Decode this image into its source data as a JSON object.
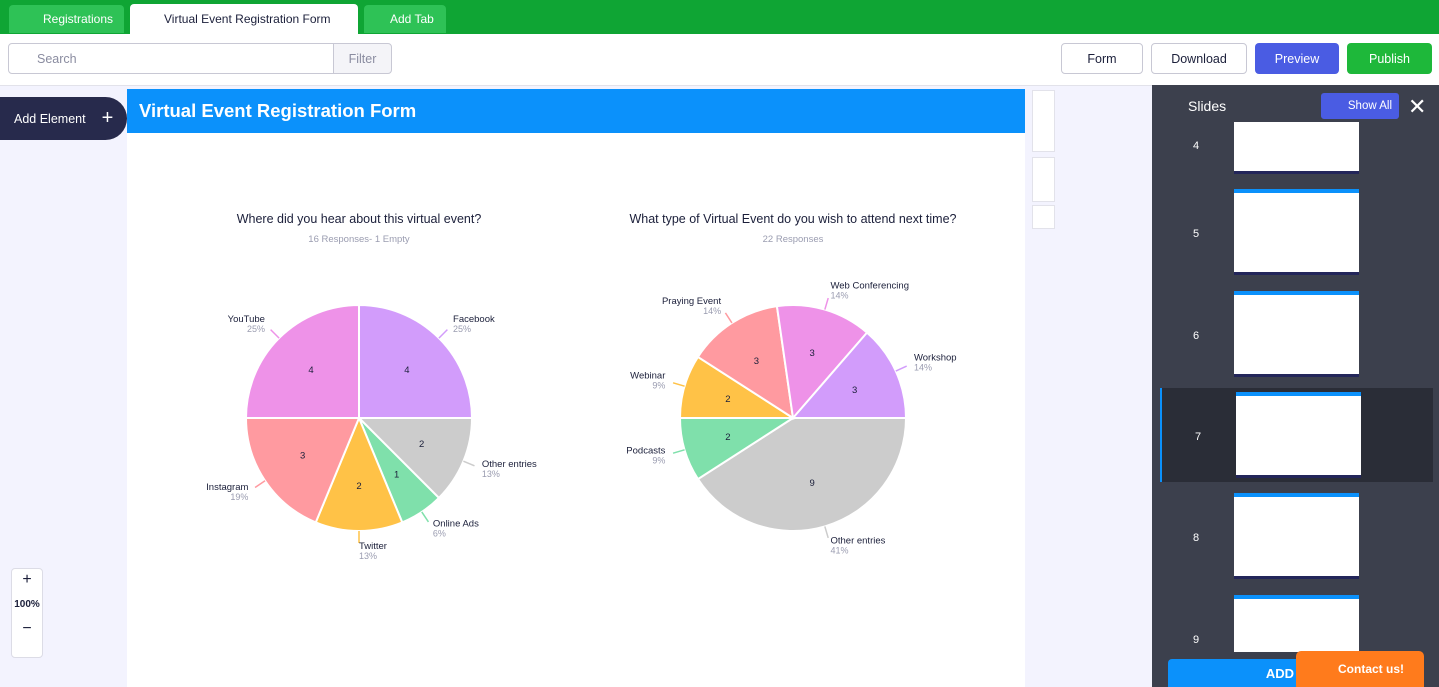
{
  "tabs": [
    "Registrations",
    "Virtual Event Registration Form",
    "Add Tab"
  ],
  "toolbar": {
    "search": "Search",
    "filter": "Filter",
    "form": "Form",
    "download": "Download",
    "preview": "Preview",
    "publish": "Publish"
  },
  "left": {
    "add_element": "Add Element",
    "zoom": "100%"
  },
  "form_title": "Virtual Event Registration Form",
  "slides": {
    "title": "Slides",
    "show_all": "Show All",
    "numbers": [
      4,
      5,
      6,
      7,
      8,
      9
    ]
  },
  "add_button": "ADD",
  "contact": "Contact us!",
  "chart_data": [
    {
      "type": "pie",
      "title": "Where did you hear about this virtual event?",
      "subtitle": "16 Responses- 1 Empty",
      "categories": [
        "Facebook",
        "Other entries",
        "Online Ads",
        "Twitter",
        "Instagram",
        "YouTube"
      ],
      "values": [
        4,
        2,
        1,
        2,
        3,
        4
      ],
      "percent_labels": [
        "25%",
        "13%",
        "6%",
        "13%",
        "19%",
        "25%"
      ],
      "colors": [
        "#d29cfb",
        "#cccccc",
        "#7fe0ab",
        "#ffc247",
        "#ff9aa0",
        "#ee92e8"
      ]
    },
    {
      "type": "pie",
      "title": "What type of Virtual Event do you wish to attend next time?",
      "subtitle": "22 Responses",
      "categories": [
        "Other entries",
        "Podcasts",
        "Webinar",
        "Praying Event",
        "Web Conferencing",
        "Workshop"
      ],
      "values": [
        9,
        2,
        2,
        3,
        3,
        3
      ],
      "percent_labels": [
        "41%",
        "9%",
        "9%",
        "14%",
        "14%",
        "14%"
      ],
      "colors": [
        "#cccccc",
        "#7fe0ab",
        "#ffc247",
        "#ff9aa0",
        "#ee92e8",
        "#d29cfb"
      ]
    }
  ]
}
